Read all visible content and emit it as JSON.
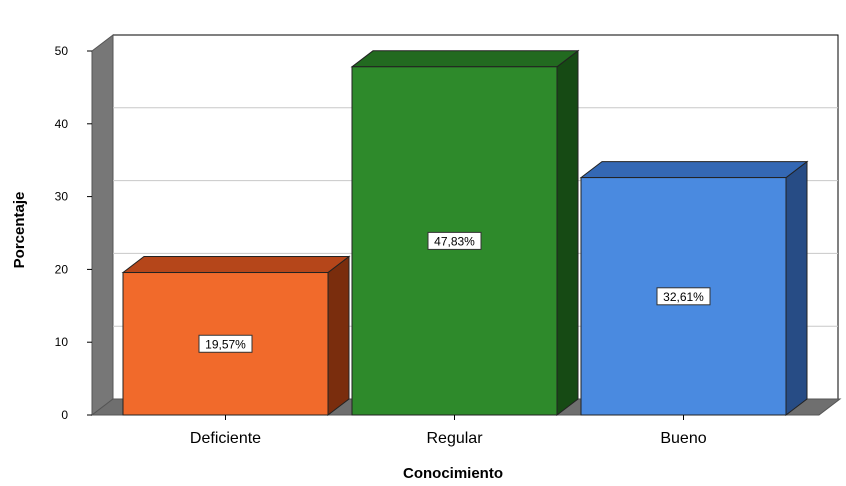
{
  "chart_data": {
    "type": "bar",
    "xlabel": "Conocimiento",
    "ylabel": "Porcentaje",
    "ylim": [
      0,
      50
    ],
    "yticks": [
      0,
      10,
      20,
      30,
      40,
      50
    ],
    "grid": true,
    "categories": [
      "Deficiente",
      "Regular",
      "Bueno"
    ],
    "values": [
      19.57,
      47.83,
      32.61
    ],
    "data_labels": [
      "19,57%",
      "47,83%",
      "32,61%"
    ],
    "colors": [
      {
        "front": "#f16a2b",
        "top": "#b5461a",
        "side": "#7a2d0d"
      },
      {
        "front": "#2e8a2b",
        "top": "#226a20",
        "side": "#164a14"
      },
      {
        "front": "#4a8ae0",
        "top": "#3468b4",
        "side": "#274c85"
      }
    ]
  }
}
